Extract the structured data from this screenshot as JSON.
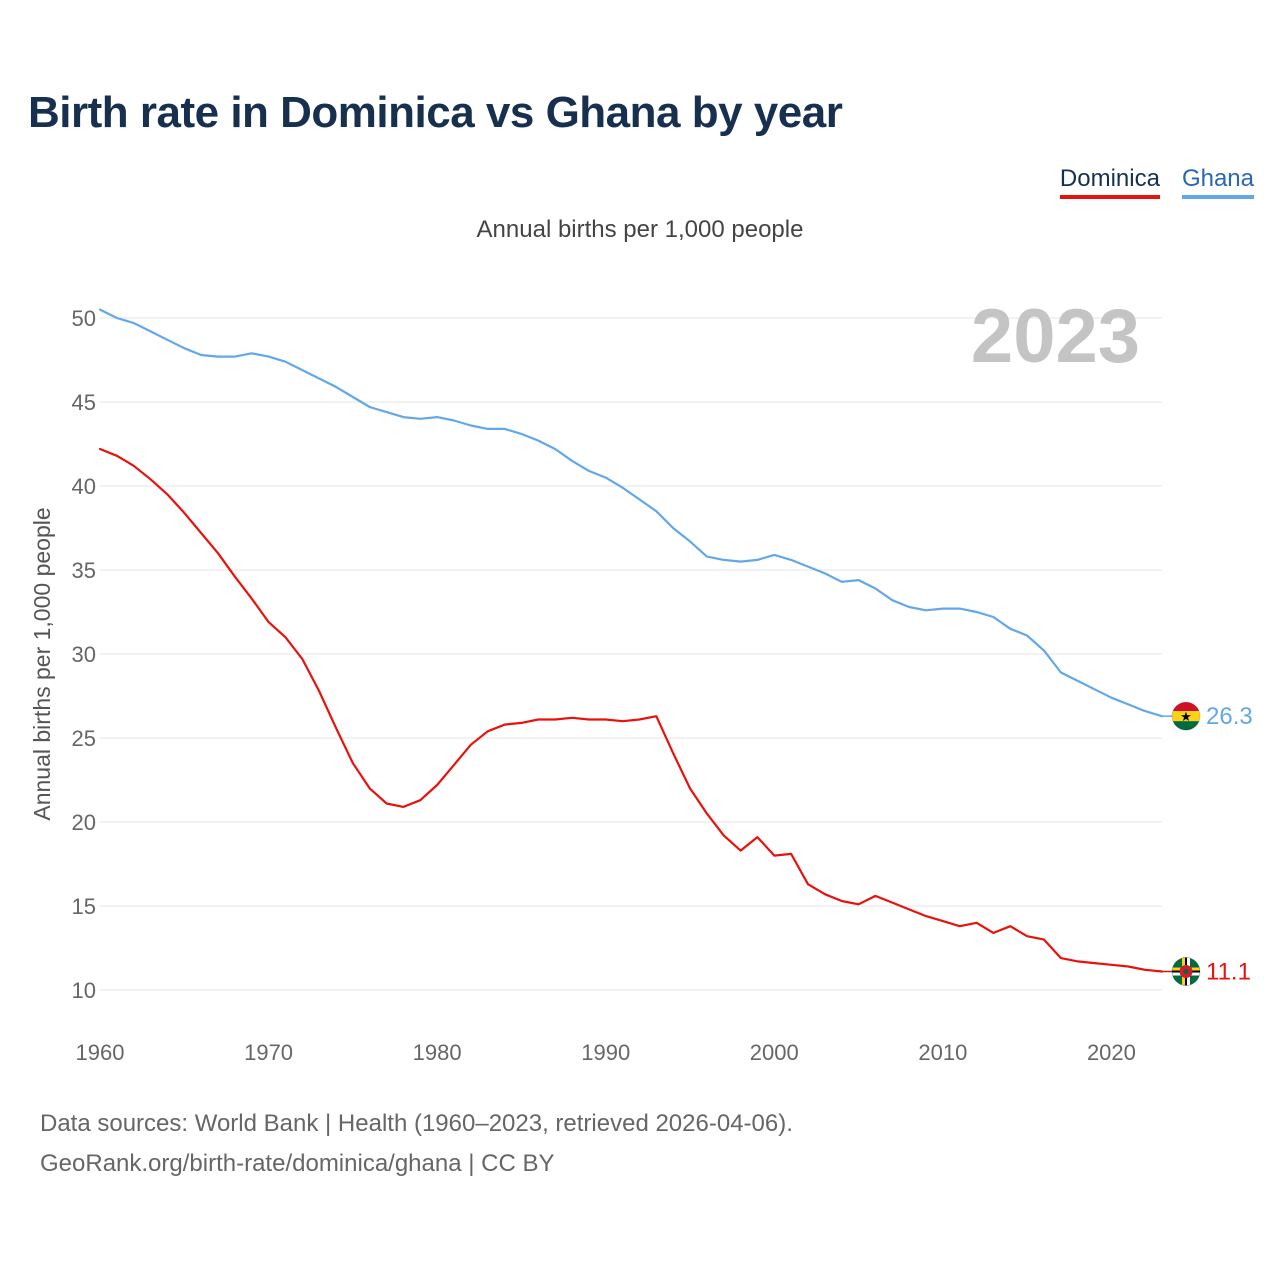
{
  "title": "Birth rate in Dominica vs Ghana by year",
  "subtitle": "Annual births per 1,000 people",
  "legend": {
    "dominica": "Dominica",
    "ghana": "Ghana"
  },
  "footer": {
    "line1": "Data sources: World Bank | Health (1960–2023, retrieved 2026-04-06).",
    "line2": "GeoRank.org/birth-rate/dominica/ghana | CC BY"
  },
  "colors": {
    "dominica": "#e8120c",
    "ghana": "#62a8e8",
    "title": "#17304f",
    "grid": "#e6e6e6"
  },
  "chart_data": {
    "type": "line",
    "title": "Birth rate in Dominica vs Ghana by year",
    "ylabel": "Annual births per 1,000 people",
    "xlabel": "",
    "current_year": "2023",
    "xlim": [
      1960,
      2023
    ],
    "ylim": [
      8,
      51
    ],
    "yticks": [
      10,
      15,
      20,
      25,
      30,
      35,
      40,
      45,
      50
    ],
    "xticks": [
      1960,
      1970,
      1980,
      1990,
      2000,
      2010,
      2020
    ],
    "x": [
      1960,
      1961,
      1962,
      1963,
      1964,
      1965,
      1966,
      1967,
      1968,
      1969,
      1970,
      1971,
      1972,
      1973,
      1974,
      1975,
      1976,
      1977,
      1978,
      1979,
      1980,
      1981,
      1982,
      1983,
      1984,
      1985,
      1986,
      1987,
      1988,
      1989,
      1990,
      1991,
      1992,
      1993,
      1994,
      1995,
      1996,
      1997,
      1998,
      1999,
      2000,
      2001,
      2002,
      2003,
      2004,
      2005,
      2006,
      2007,
      2008,
      2009,
      2010,
      2011,
      2012,
      2013,
      2014,
      2015,
      2016,
      2017,
      2018,
      2019,
      2020,
      2021,
      2022,
      2023
    ],
    "series": [
      {
        "name": "Dominica",
        "color": "#e8120c",
        "end_label": "11.1",
        "values": [
          42.2,
          41.8,
          41.2,
          40.4,
          39.5,
          38.4,
          37.2,
          36.0,
          34.6,
          33.3,
          31.9,
          31.0,
          29.7,
          27.8,
          25.6,
          23.5,
          22.0,
          21.1,
          20.9,
          21.3,
          22.2,
          23.4,
          24.6,
          25.4,
          25.8,
          25.9,
          26.1,
          26.1,
          26.2,
          26.1,
          26.1,
          26.0,
          26.1,
          26.3,
          24.1,
          22.0,
          20.5,
          19.2,
          18.3,
          19.1,
          18.0,
          18.1,
          16.3,
          15.7,
          15.3,
          15.1,
          15.6,
          15.2,
          14.8,
          14.4,
          14.1,
          13.8,
          14.0,
          13.4,
          13.8,
          13.2,
          13.0,
          11.9,
          11.7,
          11.6,
          11.5,
          11.4,
          11.2,
          11.1
        ]
      },
      {
        "name": "Ghana",
        "color": "#62a8e8",
        "end_label": "26.3",
        "values": [
          50.5,
          50.0,
          49.7,
          49.2,
          48.7,
          48.2,
          47.8,
          47.7,
          47.7,
          47.9,
          47.7,
          47.4,
          46.9,
          46.4,
          45.9,
          45.3,
          44.7,
          44.4,
          44.1,
          44.0,
          44.1,
          43.9,
          43.6,
          43.4,
          43.4,
          43.1,
          42.7,
          42.2,
          41.5,
          40.9,
          40.5,
          39.9,
          39.2,
          38.5,
          37.5,
          36.7,
          35.8,
          35.6,
          35.5,
          35.6,
          35.9,
          35.6,
          35.2,
          34.8,
          34.3,
          34.4,
          33.9,
          33.2,
          32.8,
          32.6,
          32.7,
          32.7,
          32.5,
          32.2,
          31.5,
          31.1,
          30.2,
          28.9,
          28.4,
          27.9,
          27.4,
          27.0,
          26.6,
          26.3
        ]
      }
    ]
  }
}
